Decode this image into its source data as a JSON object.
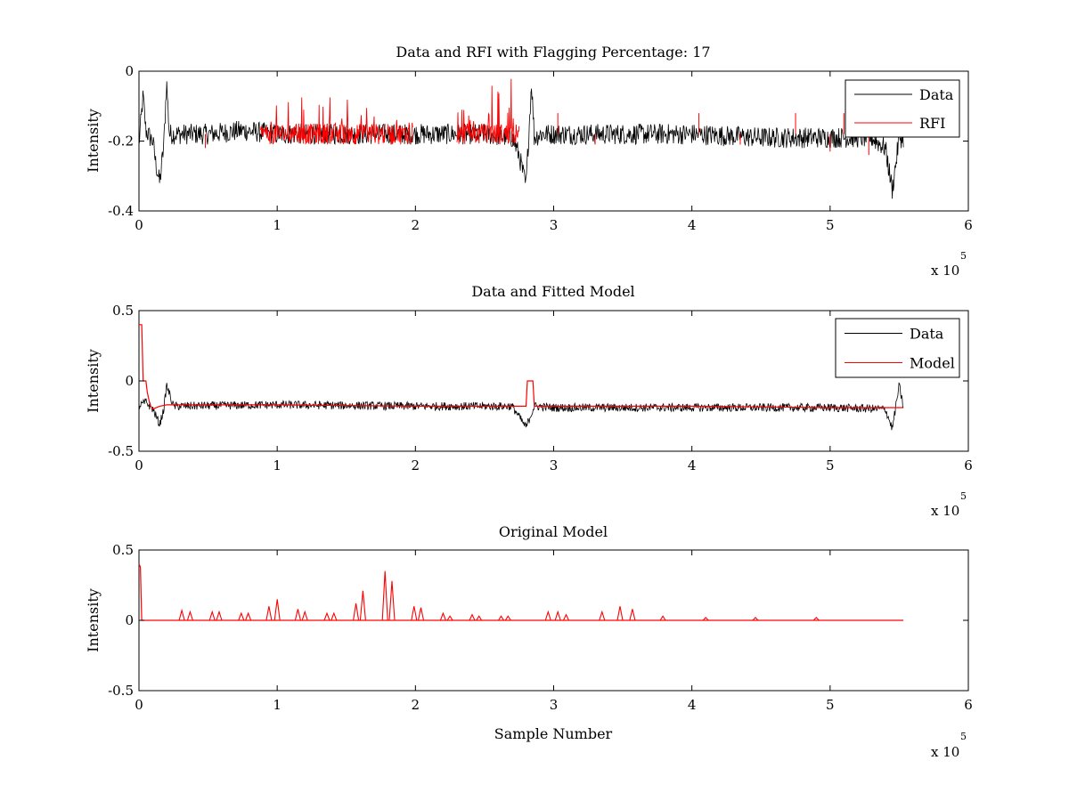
{
  "chart_data": [
    {
      "type": "line",
      "title": "Data and RFI with Flagging Percentage: 17",
      "xlabel": "",
      "ylabel": "Intensity",
      "xlim": [
        0,
        6
      ],
      "ylim": [
        -0.4,
        0
      ],
      "x_multiplier": "x 10",
      "x_exponent": "5",
      "x_ticks": [
        0,
        1,
        2,
        3,
        4,
        5,
        6
      ],
      "x_tick_labels": [
        "0",
        "1",
        "2",
        "3",
        "4",
        "5",
        "6"
      ],
      "y_ticks": [
        -0.4,
        -0.2,
        0
      ],
      "y_tick_labels": [
        "-0.4",
        "-0.2",
        "0"
      ],
      "legend": {
        "position": "top-right",
        "entries": [
          {
            "label": "Data",
            "color": "#000000"
          },
          {
            "label": "RFI",
            "color": "#ff0000"
          }
        ]
      },
      "series": [
        {
          "name": "Data",
          "color": "#000000",
          "x": [
            0,
            0.03,
            0.05,
            0.08,
            0.1,
            0.12,
            0.15,
            0.18,
            0.2,
            0.22,
            0.3,
            0.5,
            0.75,
            1.0,
            1.5,
            2.0,
            2.5,
            2.7,
            2.75,
            2.8,
            2.84,
            2.86,
            2.9,
            3.0,
            3.5,
            4.0,
            4.5,
            5.0,
            5.3,
            5.4,
            5.45,
            5.5,
            5.53
          ],
          "y": [
            -0.21,
            -0.07,
            -0.17,
            -0.19,
            -0.2,
            -0.26,
            -0.32,
            -0.21,
            -0.03,
            -0.18,
            -0.18,
            -0.18,
            -0.17,
            -0.18,
            -0.18,
            -0.18,
            -0.18,
            -0.19,
            -0.24,
            -0.33,
            -0.03,
            -0.19,
            -0.18,
            -0.18,
            -0.18,
            -0.18,
            -0.19,
            -0.19,
            -0.19,
            -0.22,
            -0.34,
            -0.19,
            -0.19
          ],
          "noise_amplitude": 0.03
        },
        {
          "name": "RFI",
          "color": "#ff0000",
          "segments": [
            {
              "x0": 0.88,
              "x1": 1.12,
              "peak": -0.06
            },
            {
              "x0": 1.12,
              "x1": 1.45,
              "peak": -0.06
            },
            {
              "x0": 1.45,
              "x1": 1.78,
              "peak": -0.08
            },
            {
              "x0": 1.8,
              "x1": 1.98,
              "peak": -0.12
            },
            {
              "x0": 2.3,
              "x1": 2.55,
              "peak": -0.1
            },
            {
              "x0": 2.55,
              "x1": 2.75,
              "peak": -0.02
            }
          ],
          "isolated_spikes": [
            {
              "x": 0.48,
              "y": -0.22
            },
            {
              "x": 3.03,
              "y": -0.12
            },
            {
              "x": 3.3,
              "y": -0.21
            },
            {
              "x": 4.05,
              "y": -0.12
            },
            {
              "x": 4.35,
              "y": -0.21
            },
            {
              "x": 4.75,
              "y": -0.12
            },
            {
              "x": 5.0,
              "y": -0.23
            },
            {
              "x": 5.1,
              "y": -0.12
            },
            {
              "x": 5.28,
              "y": -0.24
            }
          ]
        }
      ]
    },
    {
      "type": "line",
      "title": "Data and Fitted Model",
      "xlabel": "",
      "ylabel": "Intensity",
      "xlim": [
        0,
        6
      ],
      "ylim": [
        -0.5,
        0.5
      ],
      "x_multiplier": "x 10",
      "x_exponent": "5",
      "x_ticks": [
        0,
        1,
        2,
        3,
        4,
        5,
        6
      ],
      "x_tick_labels": [
        "0",
        "1",
        "2",
        "3",
        "4",
        "5",
        "6"
      ],
      "y_ticks": [
        -0.5,
        0,
        0.5
      ],
      "y_tick_labels": [
        "-0.5",
        "0",
        "0.5"
      ],
      "legend": {
        "position": "top-right",
        "entries": [
          {
            "label": "Data",
            "color": "#000000"
          },
          {
            "label": "Model",
            "color": "#ff0000"
          }
        ]
      },
      "series": [
        {
          "name": "Data",
          "color": "#000000",
          "x": [
            0,
            0.05,
            0.1,
            0.15,
            0.18,
            0.2,
            0.25,
            1.0,
            2.0,
            2.7,
            2.8,
            2.86,
            3.0,
            4.0,
            5.0,
            5.4,
            5.45,
            5.5,
            5.53
          ],
          "y": [
            -0.18,
            -0.15,
            -0.2,
            -0.31,
            -0.2,
            -0.03,
            -0.18,
            -0.17,
            -0.18,
            -0.18,
            -0.33,
            -0.18,
            -0.19,
            -0.19,
            -0.19,
            -0.2,
            -0.34,
            -0.03,
            -0.19
          ],
          "noise_amplitude": 0.03
        },
        {
          "name": "Model",
          "color": "#ff0000",
          "x": [
            0,
            0.02,
            0.03,
            0.05,
            0.06,
            0.08,
            0.1,
            0.15,
            0.2,
            1.0,
            2.0,
            2.8,
            2.81,
            2.85,
            2.86,
            3.0,
            4.0,
            5.0,
            5.53
          ],
          "y": [
            0.4,
            0.4,
            0.0,
            0.0,
            -0.08,
            -0.17,
            -0.2,
            -0.18,
            -0.17,
            -0.17,
            -0.18,
            -0.18,
            0.0,
            0.0,
            -0.18,
            -0.18,
            -0.18,
            -0.19,
            -0.19
          ]
        }
      ]
    },
    {
      "type": "line",
      "title": "Original Model",
      "xlabel": "Sample Number",
      "ylabel": "Intensity",
      "xlim": [
        0,
        6
      ],
      "ylim": [
        -0.5,
        0.5
      ],
      "x_multiplier": "x 10",
      "x_exponent": "5",
      "x_ticks": [
        0,
        1,
        2,
        3,
        4,
        5,
        6
      ],
      "x_tick_labels": [
        "0",
        "1",
        "2",
        "3",
        "4",
        "5",
        "6"
      ],
      "y_ticks": [
        -0.5,
        0,
        0.5
      ],
      "y_tick_labels": [
        "-0.5",
        "0",
        "0.5"
      ],
      "series": [
        {
          "color": "#ff0000",
          "x": [
            0,
            0.01,
            0.02,
            5.53
          ],
          "y": [
            0.4,
            0.38,
            0.0,
            0.0
          ],
          "spikes": [
            {
              "x": 0.31,
              "y": 0.07
            },
            {
              "x": 0.37,
              "y": 0.06
            },
            {
              "x": 0.53,
              "y": 0.06
            },
            {
              "x": 0.58,
              "y": 0.06
            },
            {
              "x": 0.74,
              "y": 0.05
            },
            {
              "x": 0.79,
              "y": 0.05
            },
            {
              "x": 0.94,
              "y": 0.1
            },
            {
              "x": 1.0,
              "y": 0.15
            },
            {
              "x": 1.15,
              "y": 0.08
            },
            {
              "x": 1.2,
              "y": 0.06
            },
            {
              "x": 1.36,
              "y": 0.05
            },
            {
              "x": 1.41,
              "y": 0.05
            },
            {
              "x": 1.57,
              "y": 0.12
            },
            {
              "x": 1.62,
              "y": 0.21
            },
            {
              "x": 1.78,
              "y": 0.35
            },
            {
              "x": 1.83,
              "y": 0.28
            },
            {
              "x": 1.99,
              "y": 0.1
            },
            {
              "x": 2.04,
              "y": 0.09
            },
            {
              "x": 2.2,
              "y": 0.05
            },
            {
              "x": 2.25,
              "y": 0.03
            },
            {
              "x": 2.41,
              "y": 0.04
            },
            {
              "x": 2.46,
              "y": 0.03
            },
            {
              "x": 2.62,
              "y": 0.03
            },
            {
              "x": 2.67,
              "y": 0.03
            },
            {
              "x": 2.96,
              "y": 0.06
            },
            {
              "x": 3.03,
              "y": 0.06
            },
            {
              "x": 3.09,
              "y": 0.04
            },
            {
              "x": 3.35,
              "y": 0.06
            },
            {
              "x": 3.48,
              "y": 0.1
            },
            {
              "x": 3.57,
              "y": 0.08
            },
            {
              "x": 3.79,
              "y": 0.03
            },
            {
              "x": 4.1,
              "y": 0.02
            },
            {
              "x": 4.46,
              "y": 0.02
            },
            {
              "x": 4.9,
              "y": 0.02
            }
          ]
        }
      ]
    }
  ]
}
